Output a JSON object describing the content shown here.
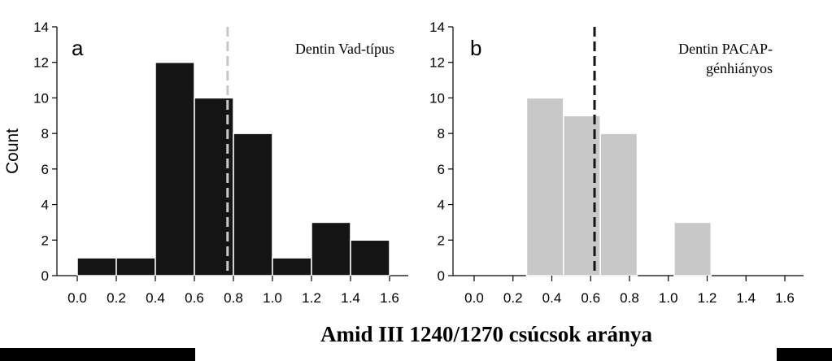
{
  "colors": {
    "panel_a_bars": "#141414",
    "panel_b_bars": "#c8c8c8",
    "panel_a_mean_line": "#c8c8c8",
    "panel_b_mean_line": "#141414",
    "bar_border": "#ffffff",
    "bottom_band": "#000000"
  },
  "chart_data": [
    {
      "type": "bar",
      "panel": "a",
      "title": "Dentin Vad-típus",
      "title_lines": [
        "Dentin Vad-típus"
      ],
      "ylabel": "Count",
      "xlabel": "Amid III 1240/1270 csúcsok aránya",
      "xlim": [
        0.0,
        1.6
      ],
      "ylim": [
        0,
        14
      ],
      "x_ticks": [
        "0.0",
        "0.2",
        "0.4",
        "0.6",
        "0.8",
        "1.0",
        "1.2",
        "1.4",
        "1.6"
      ],
      "y_ticks": [
        "0",
        "2",
        "4",
        "6",
        "8",
        "10",
        "12",
        "14"
      ],
      "grid": false,
      "bins": [
        {
          "start": 0.0,
          "end": 0.2,
          "count": 1
        },
        {
          "start": 0.2,
          "end": 0.4,
          "count": 1
        },
        {
          "start": 0.4,
          "end": 0.6,
          "count": 12
        },
        {
          "start": 0.6,
          "end": 0.8,
          "count": 10
        },
        {
          "start": 0.8,
          "end": 1.0,
          "count": 8
        },
        {
          "start": 1.0,
          "end": 1.2,
          "count": 1
        },
        {
          "start": 1.2,
          "end": 1.4,
          "count": 3
        },
        {
          "start": 1.4,
          "end": 1.6,
          "count": 2
        }
      ],
      "mean_line_x": 0.77
    },
    {
      "type": "bar",
      "panel": "b",
      "title": "Dentin PACAP-génhiányos",
      "title_lines": [
        "Dentin PACAP-",
        "génhiányos"
      ],
      "ylabel": "",
      "xlabel": "Amid III 1240/1270 csúcsok aránya",
      "xlim": [
        0.0,
        1.6
      ],
      "ylim": [
        0,
        14
      ],
      "x_ticks": [
        "0.0",
        "0.2",
        "0.4",
        "0.6",
        "0.8",
        "1.0",
        "1.2",
        "1.4",
        "1.6"
      ],
      "y_ticks": [
        "0",
        "2",
        "4",
        "6",
        "8",
        "10",
        "12",
        "14"
      ],
      "grid": false,
      "bins": [
        {
          "start": 0.0,
          "end": 0.27,
          "count": 0
        },
        {
          "start": 0.27,
          "end": 0.46,
          "count": 10
        },
        {
          "start": 0.46,
          "end": 0.65,
          "count": 9
        },
        {
          "start": 0.65,
          "end": 0.84,
          "count": 8
        },
        {
          "start": 0.84,
          "end": 1.03,
          "count": 0
        },
        {
          "start": 1.03,
          "end": 1.22,
          "count": 3
        },
        {
          "start": 1.22,
          "end": 1.6,
          "count": 0
        }
      ],
      "mean_line_x": 0.62
    }
  ],
  "figure": {
    "shared_xlabel": "Amid III 1240/1270 csúcsok aránya"
  }
}
